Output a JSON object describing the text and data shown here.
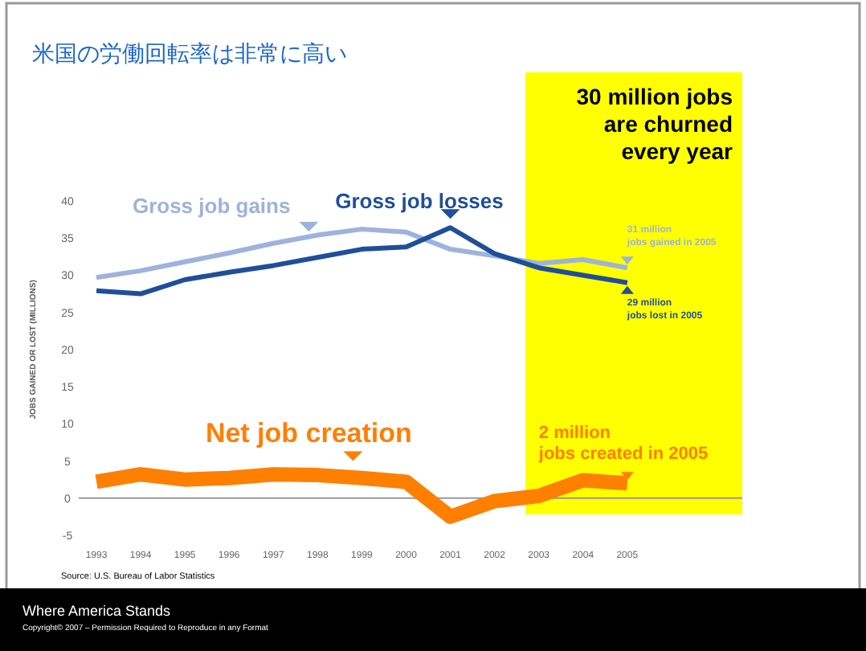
{
  "chart_data": {
    "type": "line",
    "title": "米国の労働回転率は非常に高い",
    "ylabel": "JOBS GAINED OR LOST (MILLIONS)",
    "x": [
      1993,
      1994,
      1995,
      1996,
      1997,
      1998,
      1999,
      2000,
      2001,
      2002,
      2003,
      2004,
      2005
    ],
    "series": [
      {
        "name": "Gross job gains",
        "color": "#9db3dd",
        "values": [
          29.7,
          30.6,
          31.8,
          33,
          34.3,
          35.4,
          36.2,
          35.8,
          33.5,
          32.6,
          31.6,
          32.1,
          31
        ]
      },
      {
        "name": "Gross job losses",
        "color": "#1f4e9a",
        "values": [
          27.9,
          27.5,
          29.4,
          30.4,
          31.3,
          32.4,
          33.5,
          33.8,
          36.4,
          32.9,
          31,
          30,
          29
        ]
      },
      {
        "name": "Net job creation",
        "color": "#ff7f00",
        "values": [
          2.2,
          3.2,
          2.5,
          2.7,
          3.2,
          3.1,
          2.7,
          2.2,
          -2.5,
          -0.4,
          0.3,
          2.4,
          2
        ]
      }
    ],
    "xlim": [
      1992.6,
      2007.6
    ],
    "ylim": [
      -5,
      40
    ],
    "xticks": [
      1993,
      1994,
      1995,
      1996,
      1997,
      1998,
      1999,
      2000,
      2001,
      2002,
      2003,
      2004,
      2005
    ],
    "yticks": [
      -5,
      0,
      5,
      10,
      15,
      20,
      25,
      30,
      35,
      40
    ],
    "bands": [
      {
        "axis": "x",
        "from": 2002.7,
        "to": 2007.6,
        "label": "30 million jobs are churned every year",
        "color": "#ffff00"
      }
    ],
    "ref_lines": [
      {
        "axis": "y",
        "value": 0,
        "color": "#999999"
      }
    ],
    "annotations": [
      "31 million jobs gained in 2005",
      "29 million jobs lost in 2005",
      "2 million jobs created in 2005",
      "Source: U.S. Bureau of Labor Statistics",
      "Where America Stands",
      "Copyright© 2007 – Permission Required to Reproduce in any Format"
    ],
    "grid": false,
    "legend": false,
    "marker": "none",
    "line_style": "solid"
  }
}
